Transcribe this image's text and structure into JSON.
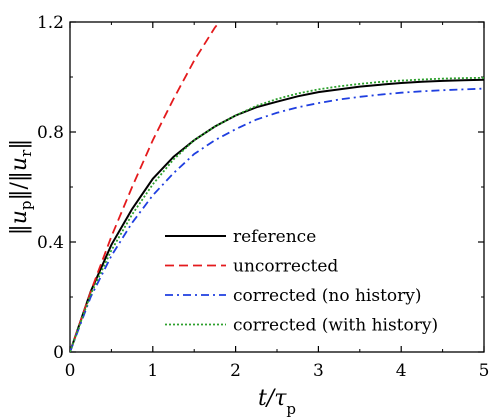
{
  "chart_data": {
    "type": "line",
    "title": "",
    "xlabel": "t/τp",
    "ylabel": "‖up‖/‖ur‖",
    "xlim": [
      0,
      5
    ],
    "ylim": [
      0,
      1.2
    ],
    "xticks": [
      0,
      1,
      2,
      3,
      4,
      5
    ],
    "yticks": [
      0,
      0.4,
      0.8,
      1.2
    ],
    "xtick_labels": [
      "0",
      "1",
      "2",
      "3",
      "4",
      "5"
    ],
    "ytick_labels": [
      "0",
      "0.4",
      "0.8",
      "1.2"
    ],
    "grid": false,
    "legend_position": "bottom-right",
    "x": [
      0,
      0.25,
      0.5,
      0.75,
      1,
      1.25,
      1.5,
      1.75,
      2,
      2.25,
      2.5,
      2.75,
      3,
      3.25,
      3.5,
      3.75,
      4,
      4.25,
      4.5,
      4.75,
      5
    ],
    "series": [
      {
        "name": "reference",
        "color": "#000000",
        "dash": "solid",
        "values": [
          0,
          0.22,
          0.39,
          0.52,
          0.63,
          0.71,
          0.77,
          0.82,
          0.86,
          0.89,
          0.91,
          0.93,
          0.945,
          0.955,
          0.965,
          0.972,
          0.978,
          0.983,
          0.986,
          0.988,
          0.99
        ]
      },
      {
        "name": "uncorrected",
        "color": "#e41a1c",
        "dash": "dashed",
        "values": [
          0,
          0.22,
          0.42,
          0.6,
          0.77,
          0.92,
          1.06,
          1.18,
          1.27,
          null,
          null,
          null,
          null,
          null,
          null,
          null,
          null,
          null,
          null,
          null,
          null
        ]
      },
      {
        "name": "corrected (no history)",
        "color": "#1f3fe0",
        "dash": "dashdot",
        "values": [
          0,
          0.2,
          0.35,
          0.47,
          0.57,
          0.65,
          0.72,
          0.77,
          0.81,
          0.845,
          0.87,
          0.89,
          0.905,
          0.918,
          0.928,
          0.936,
          0.943,
          0.948,
          0.952,
          0.955,
          0.958
        ]
      },
      {
        "name": "corrected (with history)",
        "color": "#2ca02c",
        "dash": "dotted",
        "values": [
          0,
          0.21,
          0.37,
          0.5,
          0.61,
          0.7,
          0.77,
          0.82,
          0.86,
          0.895,
          0.92,
          0.94,
          0.955,
          0.966,
          0.975,
          0.982,
          0.987,
          0.991,
          0.994,
          0.996,
          0.997
        ]
      }
    ]
  }
}
